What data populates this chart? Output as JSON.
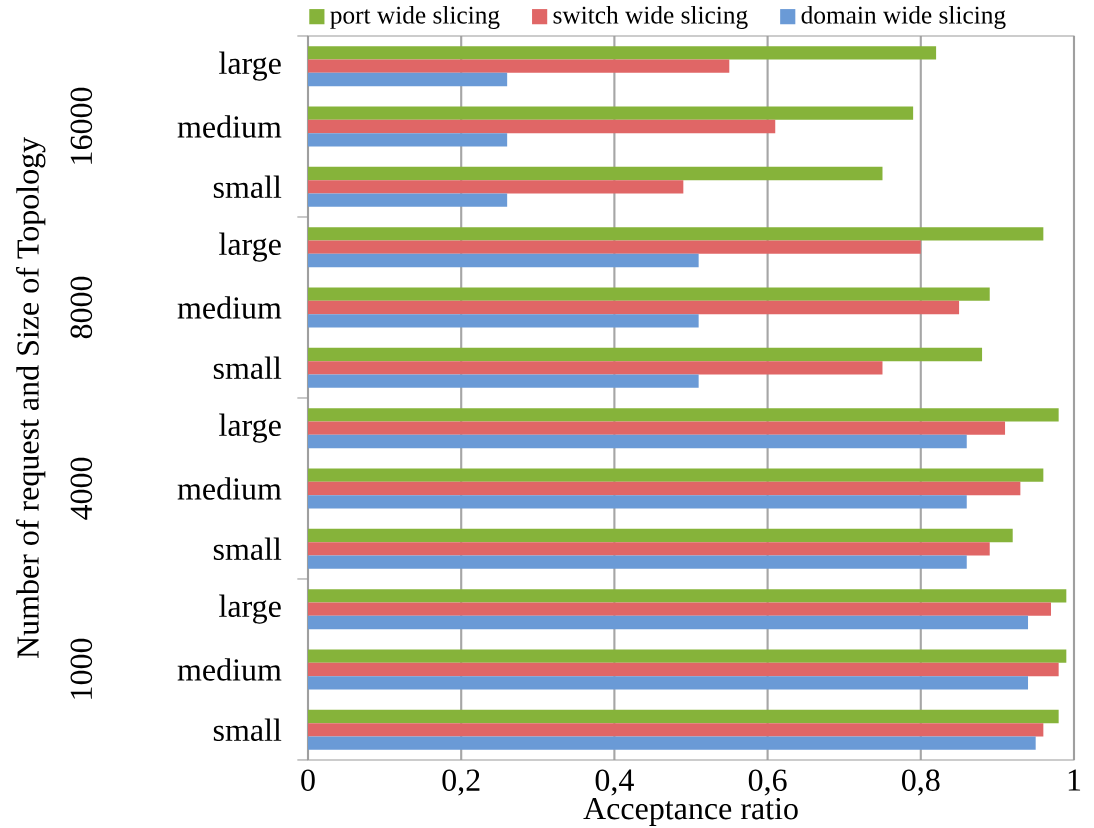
{
  "chart_data": {
    "type": "bar",
    "orientation": "horizontal",
    "xlabel": "Acceptance ratio",
    "ylabel": "Number of request and Size of Topology",
    "categories": [
      "large",
      "medium",
      "small",
      "large",
      "medium",
      "small",
      "large",
      "medium",
      "small",
      "large",
      "medium",
      "small"
    ],
    "series": [
      {
        "name": "port wide slicing",
        "color": "#86b33a",
        "values": [
          0.82,
          0.79,
          0.75,
          0.96,
          0.89,
          0.88,
          0.98,
          0.96,
          0.92,
          0.99,
          0.99,
          0.98
        ]
      },
      {
        "name": "switch wide slicing",
        "color": "#e06666",
        "values": [
          0.55,
          0.61,
          0.49,
          0.8,
          0.85,
          0.75,
          0.91,
          0.93,
          0.89,
          0.97,
          0.98,
          0.96
        ]
      },
      {
        "name": "domain wide slicing",
        "color": "#6a9ad6",
        "values": [
          0.26,
          0.26,
          0.26,
          0.51,
          0.51,
          0.51,
          0.86,
          0.86,
          0.86,
          0.94,
          0.94,
          0.95
        ]
      }
    ],
    "xlim": [
      0,
      1
    ],
    "xticks": [
      0,
      {
        "value": 0.2,
        "label": "0,2"
      },
      {
        "value": 0.4,
        "label": "0,4"
      },
      {
        "value": 0.6,
        "label": "0,6"
      },
      {
        "value": 0.8,
        "label": "0,8"
      },
      1
    ],
    "grid": "x",
    "legend": "top",
    "annotations": [
      "16000",
      "8000",
      "4000",
      "1000"
    ]
  }
}
